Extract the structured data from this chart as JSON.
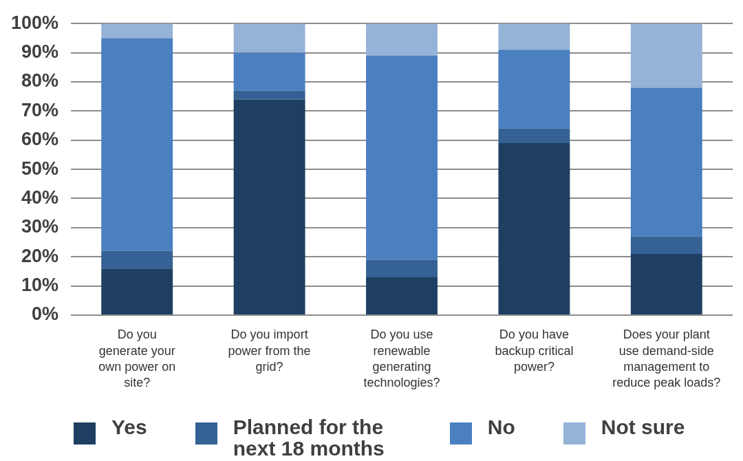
{
  "chart_data": {
    "type": "bar",
    "stacked": true,
    "categories": [
      "Do you generate your own power on site?",
      "Do you import power from the grid?",
      "Do you use renewable generating technologies?",
      "Do you have backup critical power?",
      "Does your plant use demand-side management to reduce peak loads?"
    ],
    "series": [
      {
        "name": "Yes",
        "color": "#1f3f62",
        "values": [
          16,
          74,
          13,
          59,
          21
        ]
      },
      {
        "name": "Planned for the next 18 months",
        "color": "#356194",
        "values": [
          6,
          3,
          6,
          5,
          6
        ]
      },
      {
        "name": "No",
        "color": "#4a7fc0",
        "values": [
          73,
          13,
          70,
          27,
          51
        ]
      },
      {
        "name": "Not sure",
        "color": "#95b2d7",
        "values": [
          5,
          10,
          11,
          9,
          22
        ]
      }
    ],
    "ylim": [
      0,
      100
    ],
    "yticks": [
      {
        "value": 0,
        "label": "0%"
      },
      {
        "value": 10,
        "label": "10%"
      },
      {
        "value": 20,
        "label": "20%"
      },
      {
        "value": 30,
        "label": "30%"
      },
      {
        "value": 40,
        "label": "40%"
      },
      {
        "value": 50,
        "label": "50%"
      },
      {
        "value": 60,
        "label": "60%"
      },
      {
        "value": 70,
        "label": "70%"
      },
      {
        "value": 80,
        "label": "80%"
      },
      {
        "value": 90,
        "label": "90%"
      },
      {
        "value": 100,
        "label": "100%"
      }
    ],
    "grid": "y",
    "legend": "bottom"
  }
}
